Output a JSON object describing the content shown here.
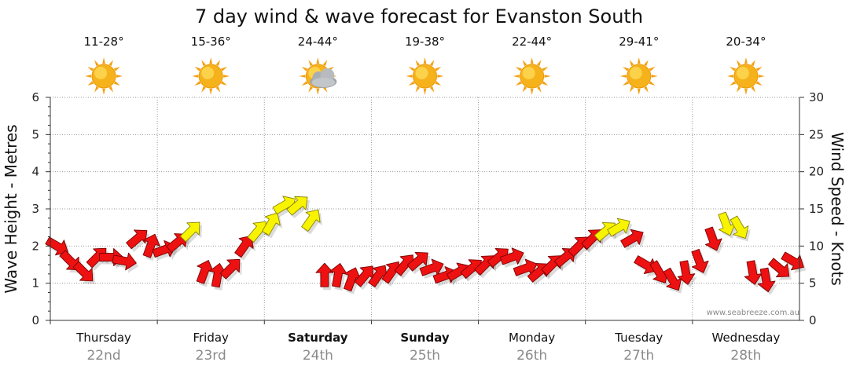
{
  "chart_data": {
    "type": "line",
    "title": "7 day wind & wave forecast for Evanston South",
    "ylabel": "Wave Height - Metres",
    "ylabel_right": "Wind Speed - Knots",
    "ylim": [
      0,
      6
    ],
    "ylim_right": [
      0,
      30
    ],
    "yticks": [
      "0",
      "1",
      "2",
      "3",
      "4",
      "5",
      "6"
    ],
    "yticks_right": [
      "0",
      "5",
      "10",
      "15",
      "20",
      "25",
      "30"
    ],
    "credit": "www.seabreeze.com.au",
    "days": [
      {
        "day": "Thursday",
        "date": "22nd",
        "temp": "11-28°",
        "weather": "sunny",
        "bold": false
      },
      {
        "day": "Friday",
        "date": "23rd",
        "temp": "15-36°",
        "weather": "sunny",
        "bold": false
      },
      {
        "day": "Saturday",
        "date": "24th",
        "temp": "24-44°",
        "weather": "partly-cloudy",
        "bold": true
      },
      {
        "day": "Sunday",
        "date": "25th",
        "temp": "19-38°",
        "weather": "sunny",
        "bold": true
      },
      {
        "day": "Monday",
        "date": "26th",
        "temp": "22-44°",
        "weather": "sunny",
        "bold": false
      },
      {
        "day": "Tuesday",
        "date": "27th",
        "temp": "29-41°",
        "weather": "sunny",
        "bold": false
      },
      {
        "day": "Wednesday",
        "date": "28th",
        "temp": "20-34°",
        "weather": "sunny",
        "bold": false
      }
    ],
    "wind_series": {
      "name": "Wind speed (knots)",
      "x_days": [
        0.0,
        0.125,
        0.25,
        0.375,
        0.5,
        0.625,
        0.75,
        0.875,
        1.0,
        1.125,
        1.25,
        1.375,
        1.5,
        1.625,
        1.75,
        1.875,
        2.0,
        2.125,
        2.25,
        2.375,
        2.5,
        2.625,
        2.75,
        2.875,
        3.0,
        3.125,
        3.25,
        3.375,
        3.5,
        3.625,
        3.75,
        3.875,
        4.0,
        4.125,
        4.25,
        4.375,
        4.5,
        4.625,
        4.75,
        4.875,
        5.0,
        5.125,
        5.25,
        5.375,
        5.5,
        5.625,
        5.75,
        5.875,
        6.0,
        6.125,
        6.25,
        6.375,
        6.5,
        6.625,
        6.75,
        6.875
      ],
      "values": [
        10,
        8,
        6.5,
        8.5,
        8.5,
        8,
        11,
        10,
        9.5,
        10.5,
        12,
        6.5,
        6,
        7,
        10,
        12,
        13,
        15.5,
        15.5,
        13.5,
        6,
        6,
        5.5,
        6,
        6,
        6.5,
        7.5,
        8,
        7,
        6,
        6.5,
        7,
        7.5,
        8.5,
        8.5,
        7,
        6.5,
        7.5,
        8.5,
        10,
        11,
        12,
        12.5,
        11,
        7.5,
        6.5,
        5.5,
        6.5,
        8,
        11,
        13,
        12.5,
        6.5,
        5.5,
        7,
        8
      ],
      "direction_deg": [
        300,
        315,
        315,
        225,
        270,
        280,
        230,
        200,
        250,
        230,
        225,
        200,
        190,
        225,
        215,
        220,
        210,
        240,
        230,
        215,
        180,
        190,
        200,
        220,
        215,
        215,
        220,
        230,
        250,
        250,
        240,
        230,
        225,
        230,
        250,
        250,
        230,
        225,
        230,
        225,
        225,
        230,
        240,
        240,
        300,
        330,
        330,
        350,
        340,
        340,
        340,
        330,
        350,
        350,
        310,
        300
      ],
      "yellow_threshold_knots": 12
    }
  }
}
